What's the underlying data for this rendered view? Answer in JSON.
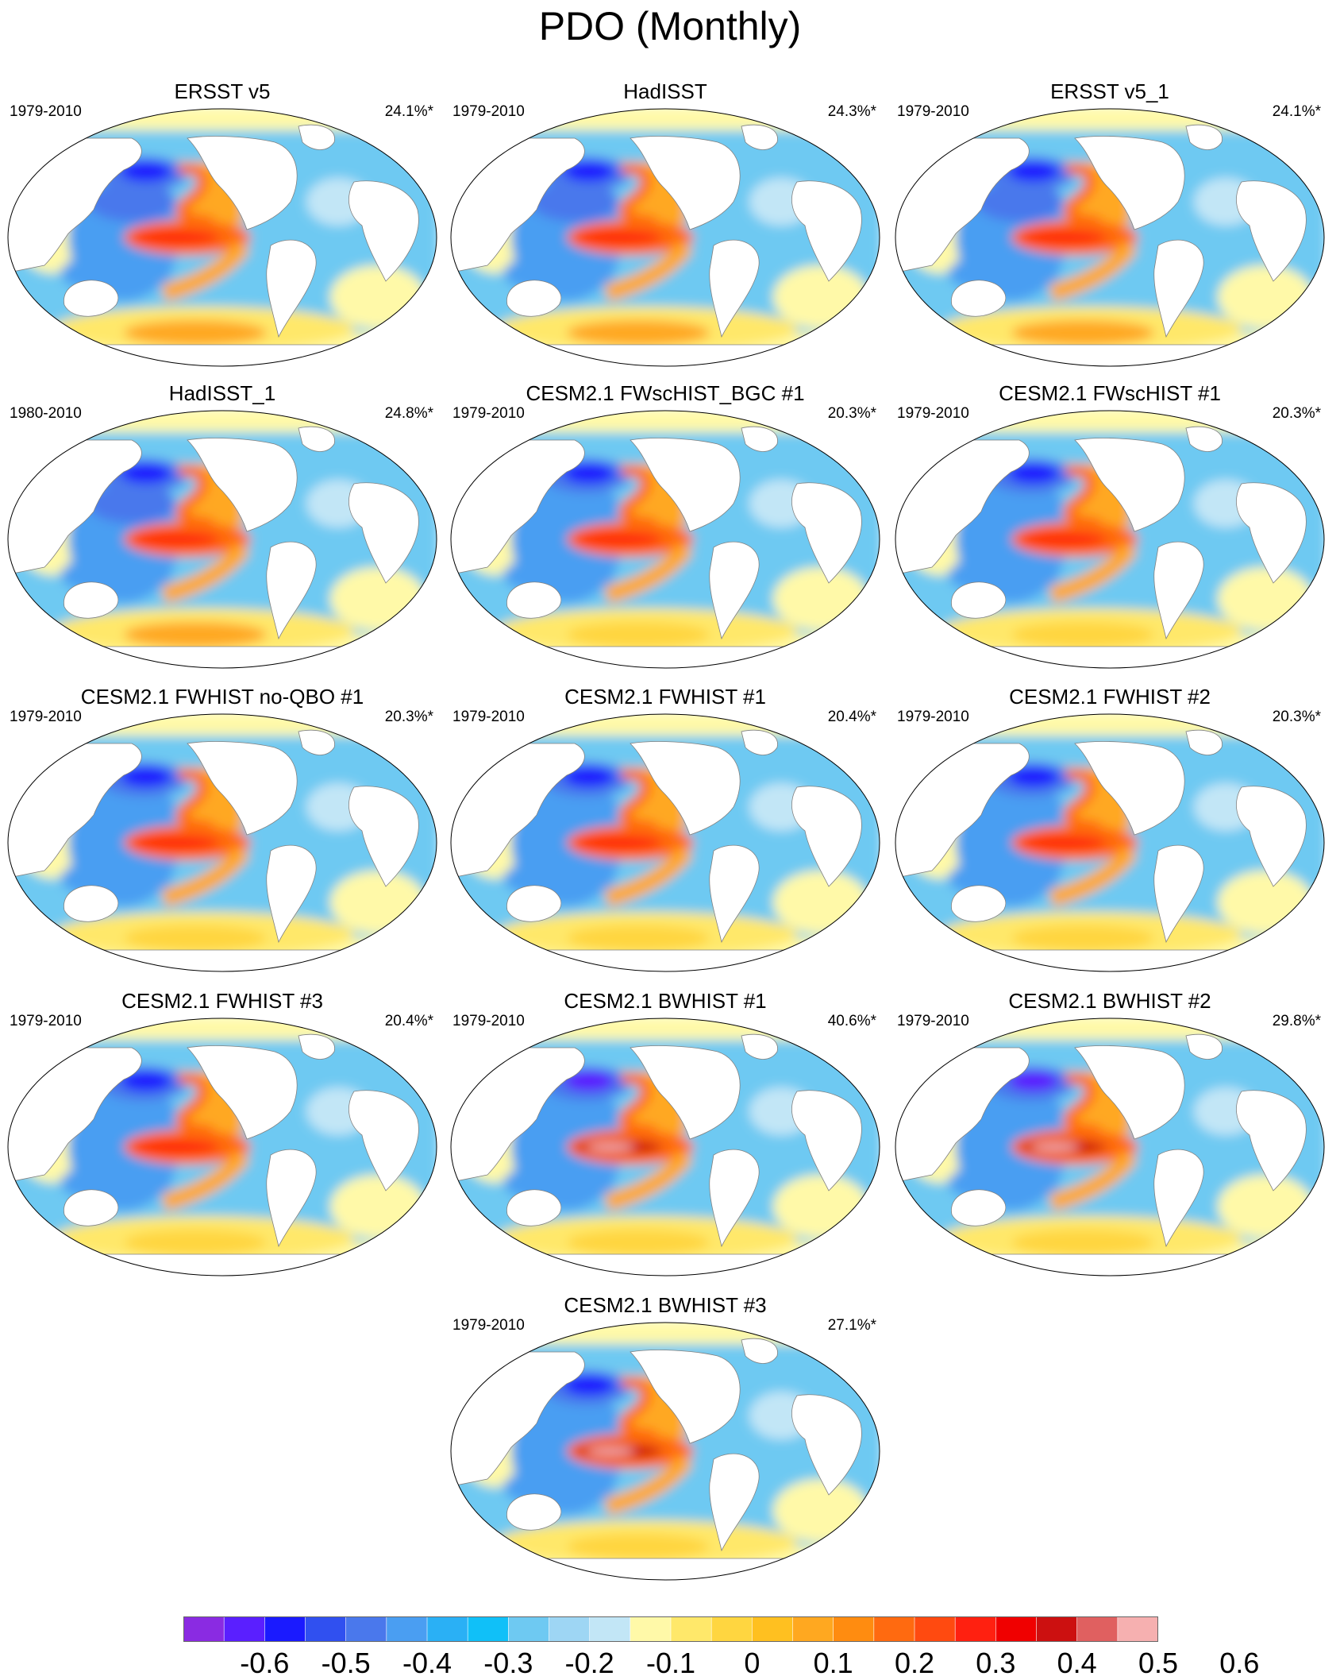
{
  "figure": {
    "title": "PDO (Monthly)"
  },
  "panels": [
    {
      "title": "ERSST v5",
      "period": "1979-2010",
      "variance": "24.1%*",
      "pattern": "obs"
    },
    {
      "title": "HadISST",
      "period": "1979-2010",
      "variance": "24.3%*",
      "pattern": "obs"
    },
    {
      "title": "ERSST v5_1",
      "period": "1979-2010",
      "variance": "24.1%*",
      "pattern": "obs"
    },
    {
      "title": "HadISST_1",
      "period": "1980-2010",
      "variance": "24.8%*",
      "pattern": "obs"
    },
    {
      "title": "CESM2.1 FWscHIST_BGC #1",
      "period": "1979-2010",
      "variance": "20.3%*",
      "pattern": "fw"
    },
    {
      "title": "CESM2.1 FWscHIST #1",
      "period": "1979-2010",
      "variance": "20.3%*",
      "pattern": "fw"
    },
    {
      "title": "CESM2.1 FWHIST no-QBO #1",
      "period": "1979-2010",
      "variance": "20.3%*",
      "pattern": "fw"
    },
    {
      "title": "CESM2.1 FWHIST #1",
      "period": "1979-2010",
      "variance": "20.4%*",
      "pattern": "fw"
    },
    {
      "title": "CESM2.1 FWHIST #2",
      "period": "1979-2010",
      "variance": "20.3%*",
      "pattern": "fw"
    },
    {
      "title": "CESM2.1 FWHIST #3",
      "period": "1979-2010",
      "variance": "20.4%*",
      "pattern": "fw"
    },
    {
      "title": "CESM2.1 BWHIST #1",
      "period": "1979-2010",
      "variance": "40.6%*",
      "pattern": "bw1"
    },
    {
      "title": "CESM2.1 BWHIST #2",
      "period": "1979-2010",
      "variance": "29.8%*",
      "pattern": "bw2"
    },
    {
      "title": "CESM2.1 BWHIST #3",
      "period": "1979-2010",
      "variance": "27.1%*",
      "pattern": "bw3"
    }
  ],
  "colorbar": {
    "colors": [
      "#8a2be2",
      "#5a1fff",
      "#1a1aff",
      "#3050f0",
      "#4a78ec",
      "#4a9ef2",
      "#2ab0f5",
      "#10c0f8",
      "#6ec9f2",
      "#9ed6f4",
      "#c2e6f6",
      "#fff9a8",
      "#ffe86a",
      "#ffd640",
      "#ffc020",
      "#ffa820",
      "#ff8c10",
      "#ff6a10",
      "#ff4a10",
      "#ff2010",
      "#f00000",
      "#cc1010",
      "#e06060",
      "#f6b0b0"
    ],
    "labels": [
      "-0.6",
      "-0.5",
      "-0.4",
      "-0.3",
      "-0.2",
      "-0.1",
      "0",
      "0.1",
      "0.2",
      "0.3",
      "0.4",
      "0.5",
      "0.6"
    ]
  }
}
